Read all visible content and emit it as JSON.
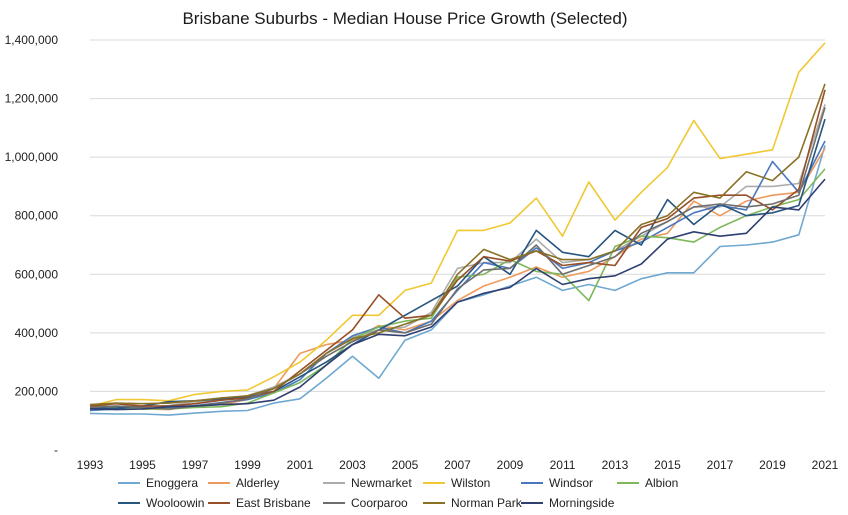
{
  "chart_data": {
    "type": "line",
    "title": "Brisbane Suburbs - Median House Price Growth (Selected)",
    "xlabel": "",
    "ylabel": "",
    "x": [
      1993,
      1994,
      1995,
      1996,
      1997,
      1998,
      1999,
      2000,
      2001,
      2002,
      2003,
      2004,
      2005,
      2006,
      2007,
      2008,
      2009,
      2010,
      2011,
      2012,
      2013,
      2014,
      2015,
      2016,
      2017,
      2018,
      2019,
      2020,
      2021
    ],
    "x_tick_labels": [
      "1993",
      "1995",
      "1997",
      "1999",
      "2001",
      "2003",
      "2005",
      "2007",
      "2009",
      "2011",
      "2013",
      "2015",
      "2017",
      "2019",
      "2021"
    ],
    "y_tick_labels": [
      "-",
      "200,000",
      "400,000",
      "600,000",
      "800,000",
      "1,000,000",
      "1,200,000",
      "1,400,000"
    ],
    "ylim": [
      0,
      1400000
    ],
    "grid": true,
    "legend_position": "bottom",
    "series": [
      {
        "name": "Enoggera",
        "color": "#6fa8d0",
        "values": [
          125000,
          123000,
          123000,
          119000,
          126000,
          132000,
          135000,
          160000,
          175000,
          245000,
          320000,
          245000,
          375000,
          410000,
          505000,
          530000,
          560000,
          590000,
          545000,
          565000,
          545000,
          585000,
          605000,
          605000,
          695000,
          700000,
          710000,
          735000,
          1040000
        ]
      },
      {
        "name": "Alderley",
        "color": "#ed9a5c",
        "values": [
          138000,
          145000,
          140000,
          138000,
          150000,
          155000,
          172000,
          210000,
          330000,
          360000,
          375000,
          425000,
          410000,
          440000,
          510000,
          560000,
          590000,
          625000,
          590000,
          610000,
          660000,
          720000,
          740000,
          850000,
          800000,
          850000,
          870000,
          880000,
          1030000
        ]
      },
      {
        "name": "Newmarket",
        "color": "#acacac",
        "values": [
          148000,
          150000,
          148000,
          152000,
          165000,
          172000,
          185000,
          215000,
          260000,
          330000,
          385000,
          410000,
          420000,
          470000,
          620000,
          640000,
          640000,
          720000,
          640000,
          650000,
          680000,
          730000,
          780000,
          830000,
          830000,
          900000,
          900000,
          910000,
          1180000
        ]
      },
      {
        "name": "Wilston",
        "color": "#f0c832",
        "values": [
          150000,
          172000,
          172000,
          168000,
          190000,
          200000,
          205000,
          250000,
          300000,
          375000,
          460000,
          460000,
          545000,
          570000,
          750000,
          750000,
          775000,
          860000,
          730000,
          915000,
          785000,
          880000,
          965000,
          1125000,
          995000,
          1010000,
          1025000,
          1290000,
          1390000
        ]
      },
      {
        "name": "Windsor",
        "color": "#4a78c0",
        "values": [
          135000,
          140000,
          142000,
          145000,
          152000,
          162000,
          172000,
          195000,
          240000,
          330000,
          390000,
          420000,
          400000,
          440000,
          545000,
          640000,
          620000,
          690000,
          620000,
          640000,
          680000,
          710000,
          760000,
          810000,
          835000,
          820000,
          985000,
          880000,
          1055000
        ]
      },
      {
        "name": "Albion",
        "color": "#7db85a",
        "values": [
          152000,
          148000,
          140000,
          140000,
          145000,
          148000,
          160000,
          195000,
          230000,
          290000,
          380000,
          420000,
          440000,
          450000,
          590000,
          600000,
          650000,
          610000,
          600000,
          510000,
          695000,
          730000,
          725000,
          710000,
          760000,
          800000,
          830000,
          855000,
          960000
        ]
      },
      {
        "name": "Wooloowin",
        "color": "#26557f",
        "values": [
          142000,
          143000,
          150000,
          165000,
          168000,
          175000,
          182000,
          200000,
          250000,
          300000,
          360000,
          410000,
          460000,
          510000,
          560000,
          660000,
          600000,
          750000,
          675000,
          660000,
          750000,
          700000,
          855000,
          770000,
          840000,
          800000,
          810000,
          835000,
          1130000
        ]
      },
      {
        "name": "East Brisbane",
        "color": "#964f26",
        "values": [
          150000,
          158000,
          150000,
          150000,
          158000,
          170000,
          178000,
          200000,
          270000,
          340000,
          410000,
          530000,
          450000,
          460000,
          580000,
          660000,
          645000,
          680000,
          630000,
          640000,
          630000,
          760000,
          790000,
          860000,
          870000,
          870000,
          820000,
          890000,
          1230000
        ]
      },
      {
        "name": "Coorparoo",
        "color": "#6e6e6e",
        "values": [
          145000,
          150000,
          145000,
          140000,
          150000,
          160000,
          175000,
          210000,
          260000,
          320000,
          370000,
          410000,
          400000,
          430000,
          550000,
          615000,
          620000,
          700000,
          600000,
          630000,
          660000,
          740000,
          780000,
          830000,
          840000,
          830000,
          840000,
          870000,
          1170000
        ]
      },
      {
        "name": "Norman Park",
        "color": "#8a7224",
        "values": [
          155000,
          160000,
          158000,
          160000,
          168000,
          178000,
          185000,
          210000,
          260000,
          330000,
          380000,
          400000,
          430000,
          460000,
          600000,
          685000,
          650000,
          680000,
          650000,
          650000,
          680000,
          770000,
          800000,
          880000,
          860000,
          950000,
          920000,
          1000000,
          1250000
        ]
      },
      {
        "name": "Morningside",
        "color": "#2f3f70",
        "values": [
          140000,
          138000,
          140000,
          148000,
          150000,
          155000,
          158000,
          170000,
          215000,
          290000,
          360000,
          395000,
          390000,
          420000,
          505000,
          535000,
          555000,
          620000,
          565000,
          585000,
          595000,
          635000,
          720000,
          745000,
          730000,
          740000,
          830000,
          820000,
          925000
        ]
      }
    ]
  }
}
